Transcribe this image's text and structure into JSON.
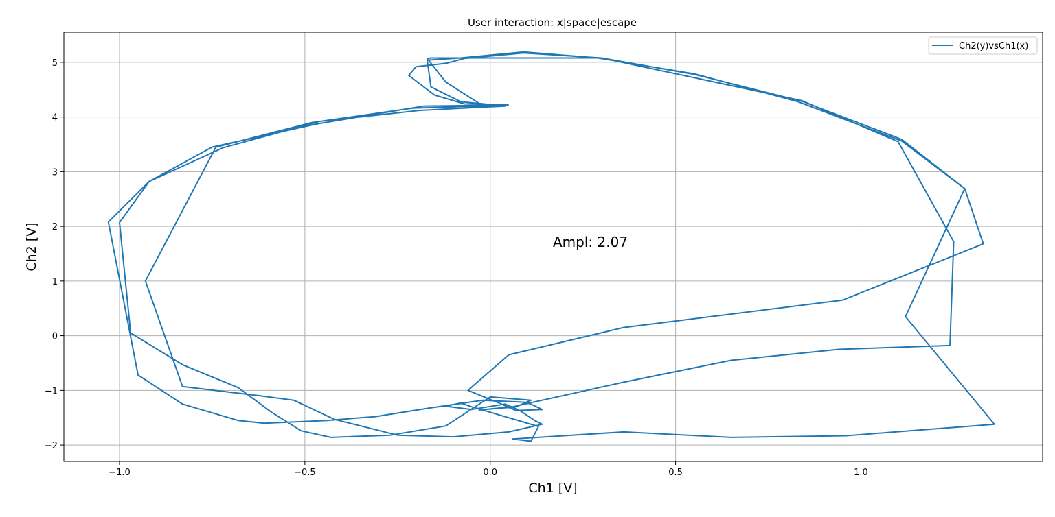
{
  "chart_data": {
    "type": "line",
    "title": "User interaction: x|space|escape",
    "xlabel": "Ch1 [V]",
    "ylabel": "Ch2 [V]",
    "xlim": [
      -1.15,
      1.49
    ],
    "ylim": [
      -2.3,
      5.55
    ],
    "xticks": [
      -1.0,
      -0.5,
      0.0,
      0.5,
      1.0
    ],
    "xtick_labels": [
      "−1.0",
      "−0.5",
      "0.0",
      "0.5",
      "1.0"
    ],
    "yticks": [
      -2,
      -1,
      0,
      1,
      2,
      3,
      4,
      5
    ],
    "ytick_labels": [
      "−2",
      "−1",
      "0",
      "1",
      "2",
      "3",
      "4",
      "5"
    ],
    "grid": true,
    "legend_position": "top-right",
    "annotation": "Ampl: 2.07",
    "color": "#1f77b4",
    "series": [
      {
        "name": "Ch2(y)vsCh1(x)",
        "x": [
          0.05,
          -0.07,
          -0.15,
          -0.22,
          -0.2,
          -0.12,
          -0.07,
          0.09,
          0.3,
          0.55,
          0.84,
          1.11,
          1.28,
          1.12,
          1.36,
          0.96,
          0.65,
          0.36,
          0.06,
          0.11,
          0.13,
          -0.05,
          -0.08,
          -0.12,
          -0.05,
          0.04,
          0.08,
          0.12,
          0.14,
          0.05,
          -0.1,
          -0.25,
          -0.42,
          -0.53,
          -0.62,
          -0.83,
          -0.93,
          -0.74,
          -0.48,
          -0.21,
          -0.03,
          0.04,
          -0.03,
          -0.12,
          -0.17,
          -0.16,
          -0.04,
          0.3,
          0.84,
          1.1,
          1.25,
          1.24,
          0.94,
          0.65,
          0.36,
          0.06,
          -0.03,
          0.07,
          0.11,
          0.0,
          -0.12,
          -0.27,
          -0.43,
          -0.51,
          -0.59,
          -0.68,
          -0.83,
          -0.97,
          -1.0,
          -0.92,
          -0.72,
          -0.46,
          -0.19,
          -0.02,
          0.04,
          0.01,
          -0.08,
          -0.16,
          -0.17,
          -0.08,
          0.09,
          0.29,
          0.55,
          0.83,
          1.11,
          1.28,
          1.33,
          0.95,
          0.36,
          0.05,
          -0.06,
          0.02,
          0.07,
          0.14,
          0.1,
          -0.02,
          -0.16,
          -0.31,
          -0.44,
          -0.61,
          -0.68,
          -0.83,
          -0.95,
          -1.03,
          -0.92,
          -0.75,
          -0.47,
          -0.18,
          0.03
        ],
        "y": [
          4.22,
          4.24,
          4.4,
          4.76,
          4.92,
          4.98,
          5.07,
          5.17,
          5.08,
          4.78,
          4.29,
          3.59,
          2.69,
          0.35,
          -1.62,
          -1.83,
          -1.86,
          -1.76,
          -1.89,
          -1.93,
          -1.66,
          -1.3,
          -1.23,
          -1.29,
          -1.35,
          -1.25,
          -1.37,
          -1.55,
          -1.62,
          -1.76,
          -1.85,
          -1.82,
          -1.53,
          -1.18,
          -1.1,
          -0.93,
          1.0,
          3.45,
          3.9,
          4.16,
          4.2,
          4.2,
          4.25,
          4.64,
          5.07,
          5.08,
          5.08,
          5.08,
          4.3,
          3.55,
          1.72,
          -0.18,
          -0.25,
          -0.45,
          -0.85,
          -1.3,
          -1.36,
          -1.3,
          -1.18,
          -1.12,
          -1.65,
          -1.82,
          -1.86,
          -1.74,
          -1.4,
          -0.95,
          -0.53,
          0.05,
          2.07,
          2.82,
          3.44,
          3.92,
          4.12,
          4.18,
          4.2,
          4.22,
          4.28,
          4.55,
          5.04,
          5.08,
          5.19,
          5.08,
          4.79,
          4.28,
          3.56,
          2.69,
          1.68,
          0.65,
          0.15,
          -0.35,
          -1.0,
          -1.22,
          -1.37,
          -1.35,
          -1.22,
          -1.18,
          -1.32,
          -1.48,
          -1.55,
          -1.6,
          -1.55,
          -1.25,
          -0.72,
          2.08,
          2.82,
          3.45,
          3.87,
          4.2,
          4.22
        ]
      }
    ]
  }
}
